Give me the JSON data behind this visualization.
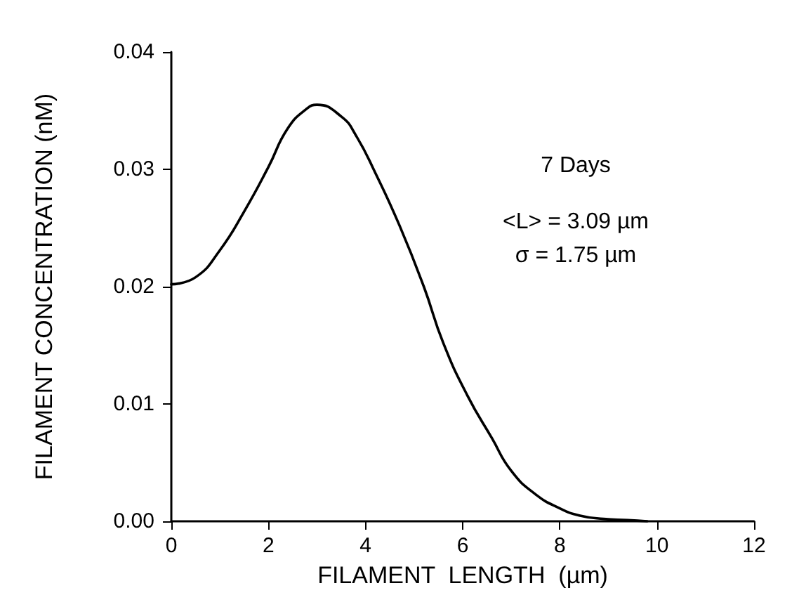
{
  "chart_data": {
    "type": "line",
    "xlabel": "FILAMENT  LENGTH  (µm)",
    "ylabel": "FILAMENT CONCENTRATION (nM)",
    "x": [
      0,
      0.5,
      1,
      1.5,
      2,
      2.4,
      2.8,
      3,
      3.5,
      3.8,
      4.2,
      4.7,
      5.2,
      5.6,
      6.1,
      6.6,
      7,
      7.5,
      8,
      8.4,
      8.9,
      9.4,
      9.8
    ],
    "series": [
      {
        "color": "#000000",
        "values": [
          0.0202,
          0.0208,
          0.0231,
          0.0264,
          0.0302,
          0.0335,
          0.0352,
          0.0355,
          0.0345,
          0.0329,
          0.0297,
          0.0252,
          0.02,
          0.0152,
          0.0107,
          0.0071,
          0.0043,
          0.0023,
          0.0011,
          0.0005,
          0.0002,
          0.0001,
          0.0
        ]
      }
    ],
    "xlim": [
      0,
      12
    ],
    "xticks": [
      0,
      2,
      4,
      6,
      8,
      10,
      12
    ],
    "ylim": [
      0,
      0.04
    ],
    "yticks": [
      {
        "value": 0,
        "label": "0.00"
      },
      {
        "value": 0.01,
        "label": "0.01"
      },
      {
        "value": 0.02,
        "label": "0.02"
      },
      {
        "value": 0.03,
        "label": "0.03"
      },
      {
        "value": 0.04,
        "label": "0.04"
      }
    ],
    "annotations": [
      "7 Days",
      "<L> = 3.09 µm",
      "σ = 1.75 µm"
    ],
    "grid": false,
    "marker": "none",
    "line_style": "solid"
  }
}
